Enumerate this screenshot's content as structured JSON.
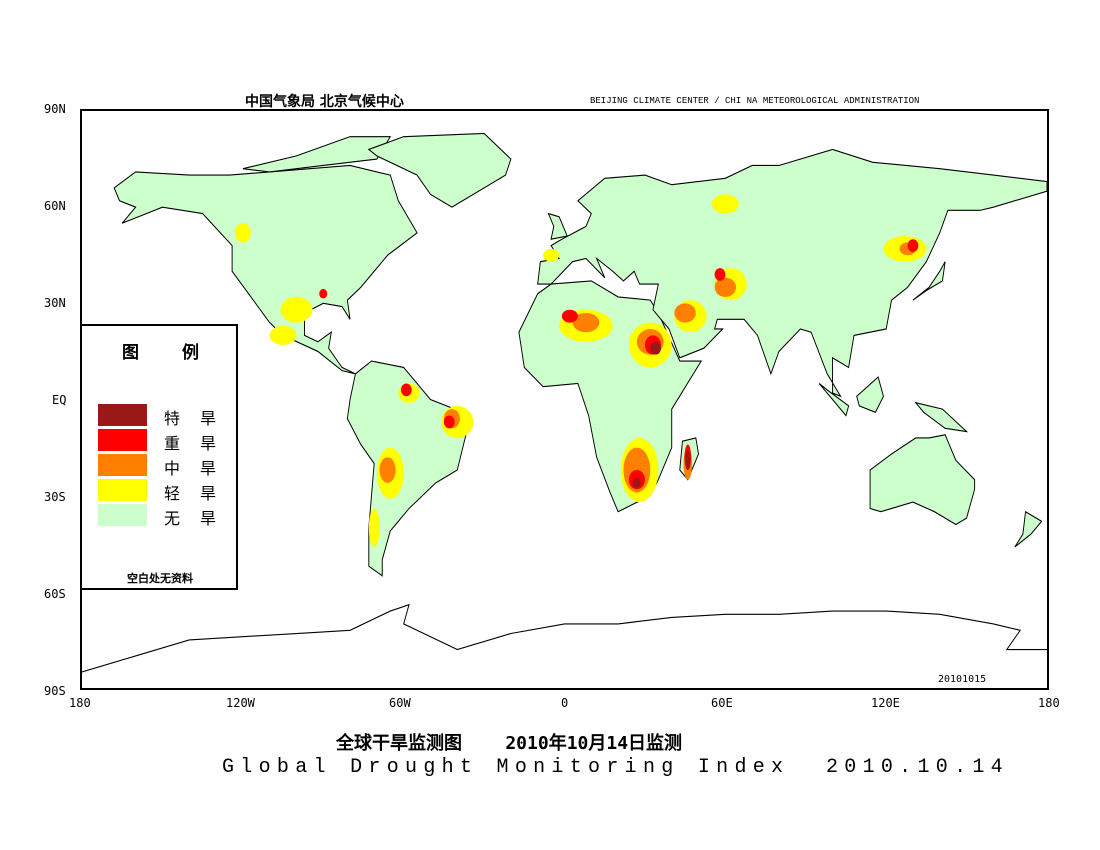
{
  "header": {
    "cn": "中国气象局   北京气候中心",
    "en": "BEIJING CLIMATE CENTER / CHI NA METEOROLOGICAL ADMINISTRATION"
  },
  "axes": {
    "lat_ticks": [
      "90N",
      "60N",
      "30N",
      "EQ",
      "30S",
      "60S",
      "90S"
    ],
    "lon_ticks": [
      "180",
      "120W",
      "60W",
      "0",
      "60E",
      "120E",
      "180"
    ]
  },
  "legend": {
    "title_a": "图",
    "title_b": "例",
    "items": [
      {
        "a": "特",
        "b": "旱",
        "color": "#991818"
      },
      {
        "a": "重",
        "b": "旱",
        "color": "#ff0000"
      },
      {
        "a": "中",
        "b": "旱",
        "color": "#ff8000"
      },
      {
        "a": "轻",
        "b": "旱",
        "color": "#ffff00"
      },
      {
        "a": "无",
        "b": "旱",
        "color": "#ccffcc"
      }
    ],
    "note": "空白处无资料"
  },
  "stamp": "20101015",
  "title_cn": "全球干旱监测图    2010年10月14日监测",
  "title_en": "Global Drought Monitoring Index  2010.10.14"
}
